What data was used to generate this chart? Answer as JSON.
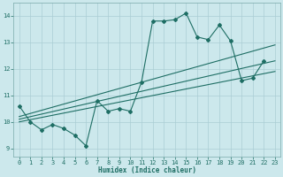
{
  "title": "",
  "xlabel": "Humidex (Indice chaleur)",
  "xlim": [
    -0.5,
    23.5
  ],
  "ylim": [
    8.7,
    14.5
  ],
  "xticks": [
    0,
    1,
    2,
    3,
    4,
    5,
    6,
    7,
    8,
    9,
    10,
    11,
    12,
    13,
    14,
    15,
    16,
    17,
    18,
    19,
    20,
    21,
    22,
    23
  ],
  "yticks": [
    9,
    10,
    11,
    12,
    13,
    14
  ],
  "bg_color": "#cce8ec",
  "line_color": "#1e6e64",
  "grid_color": "#aacdd4",
  "jagged_line": {
    "x": [
      0,
      1,
      2,
      3,
      4,
      5,
      6,
      7,
      8,
      9,
      10,
      11,
      12,
      13,
      14,
      15,
      16,
      17,
      18,
      19,
      20,
      21,
      22
    ],
    "y": [
      10.6,
      10.0,
      9.7,
      9.9,
      9.75,
      9.5,
      9.1,
      10.8,
      10.4,
      10.5,
      10.4,
      11.5,
      13.8,
      13.8,
      13.85,
      14.1,
      13.2,
      13.1,
      13.65,
      13.05,
      11.55,
      11.65,
      12.3
    ]
  },
  "trend_lines": [
    {
      "x": [
        0,
        23
      ],
      "y": [
        10.2,
        12.9
      ]
    },
    {
      "x": [
        0,
        23
      ],
      "y": [
        10.1,
        12.3
      ]
    },
    {
      "x": [
        0,
        23
      ],
      "y": [
        10.0,
        11.9
      ]
    }
  ]
}
